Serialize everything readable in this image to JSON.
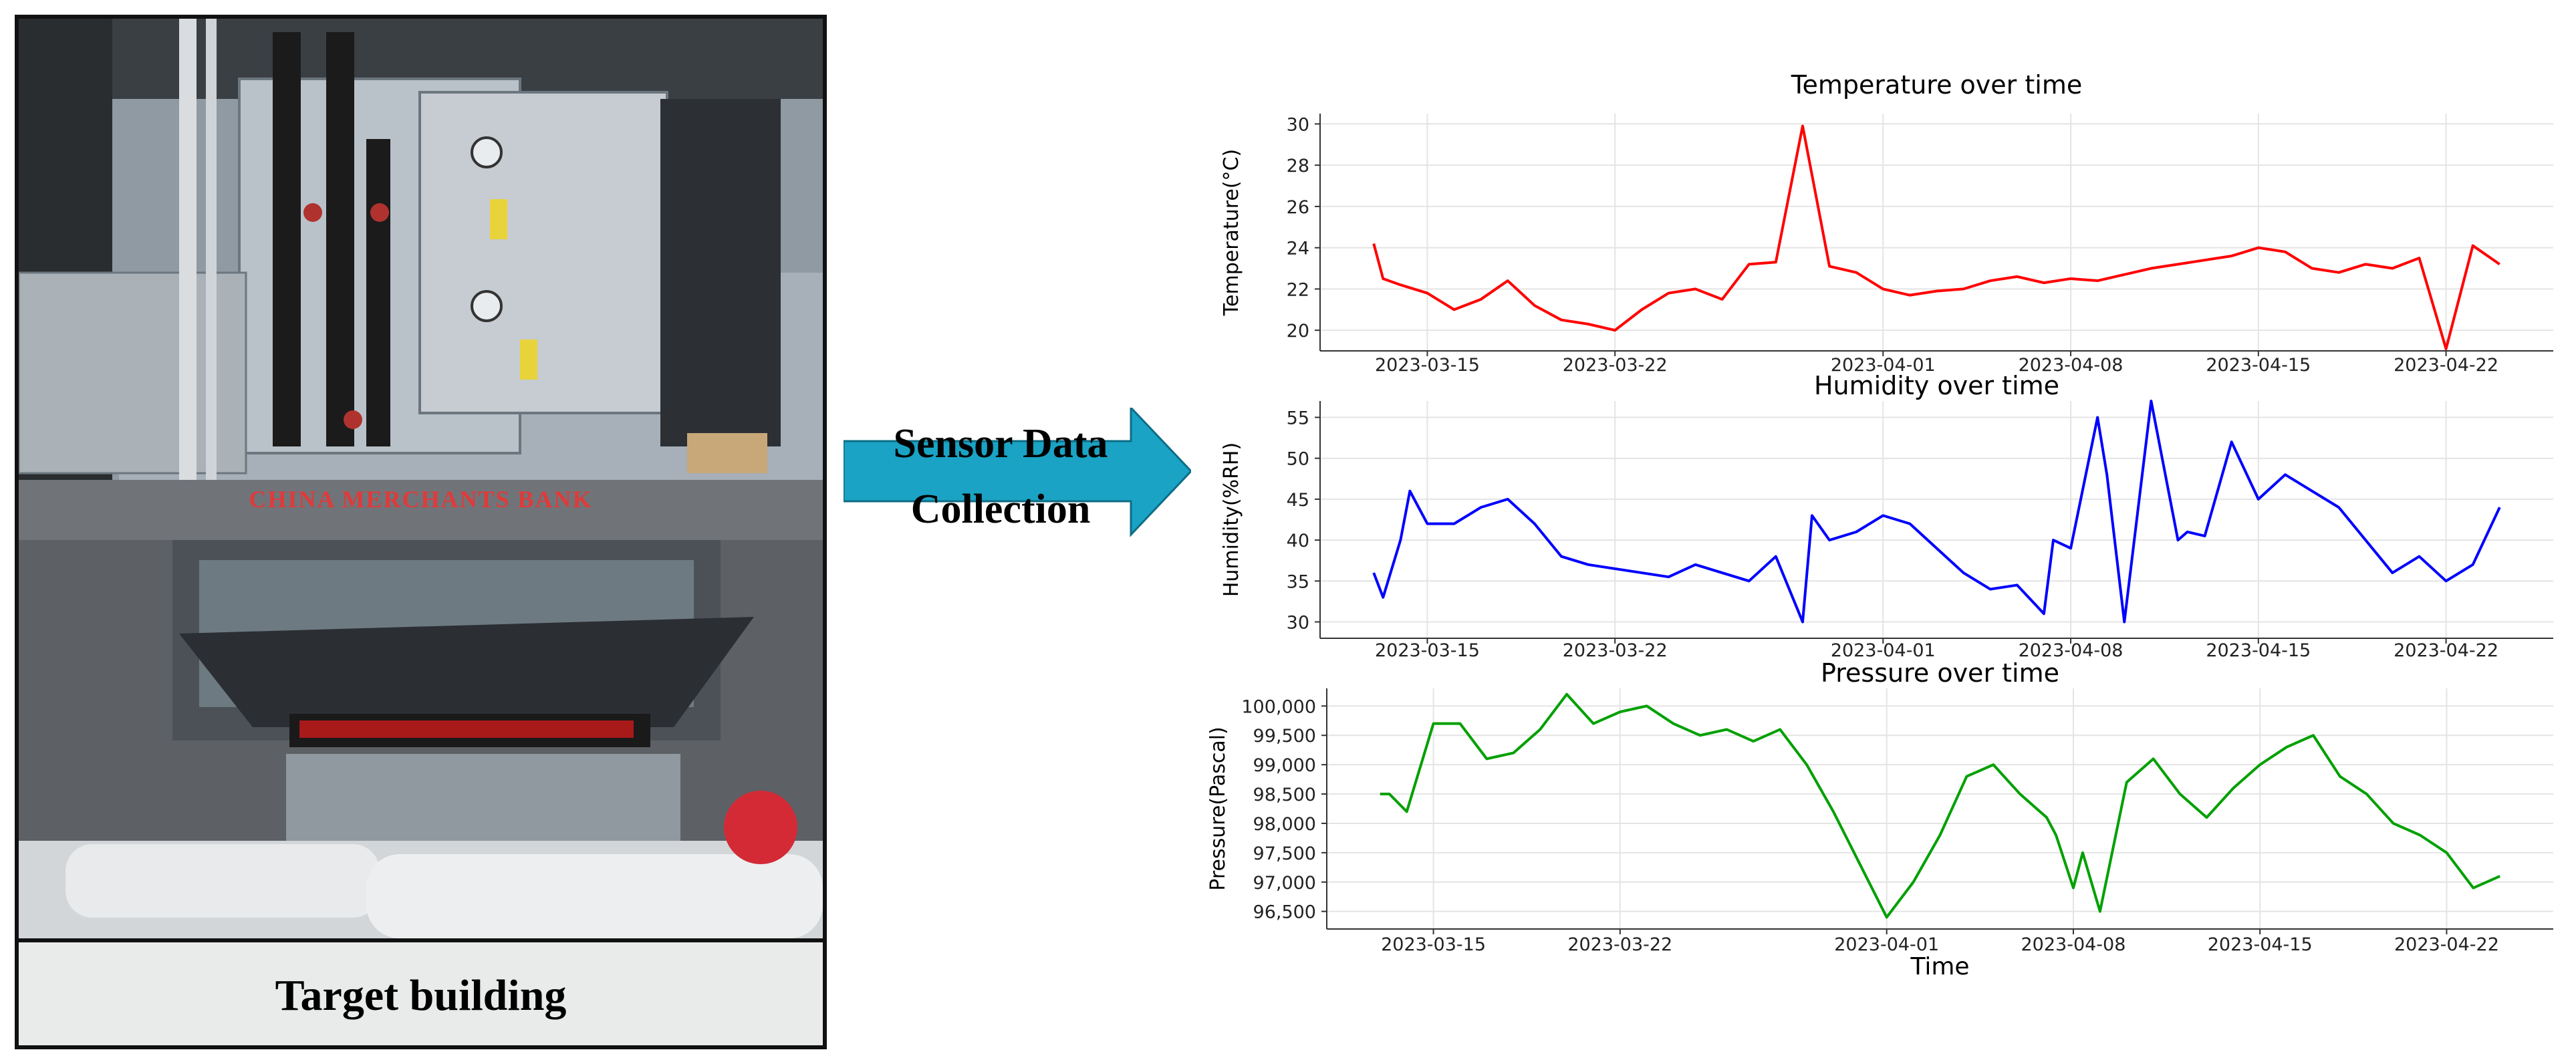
{
  "photo_caption": "Target building",
  "arrow_label": [
    "Sensor Data",
    "Collection"
  ],
  "bank_sign": "CHINA MERCHANTS BANK",
  "colors": {
    "temperature": "#ff0000",
    "humidity": "#0000ff",
    "pressure": "#00a000",
    "arrow": "#1aa3c4"
  },
  "chart_data": [
    {
      "type": "line",
      "title": "Temperature over time",
      "ylabel": "Temperature(°C)",
      "xlabel": "",
      "xlim": [
        "2023-03-11",
        "2023-04-26"
      ],
      "ylim": [
        19,
        30.5
      ],
      "yticks": [
        "20",
        "22",
        "24",
        "26",
        "28",
        "30"
      ],
      "xticks": [
        "2023-03-15",
        "2023-03-22",
        "2023-04-01",
        "2023-04-08",
        "2023-04-15",
        "2023-04-22"
      ],
      "grid": true,
      "series": [
        {
          "x": [
            "2023-03-13",
            "2023-03-13",
            "2023-03-14",
            "2023-03-15",
            "2023-03-16",
            "2023-03-17",
            "2023-03-18",
            "2023-03-19",
            "2023-03-20",
            "2023-03-21",
            "2023-03-22",
            "2023-03-23",
            "2023-03-24",
            "2023-03-25",
            "2023-03-26",
            "2023-03-27",
            "2023-03-28",
            "2023-03-29",
            "2023-03-30",
            "2023-03-31",
            "2023-04-01",
            "2023-04-02",
            "2023-04-03",
            "2023-04-04",
            "2023-04-05",
            "2023-04-06",
            "2023-04-07",
            "2023-04-08",
            "2023-04-09",
            "2023-04-10",
            "2023-04-11",
            "2023-04-12",
            "2023-04-13",
            "2023-04-14",
            "2023-04-15",
            "2023-04-16",
            "2023-04-17",
            "2023-04-18",
            "2023-04-19",
            "2023-04-20",
            "2023-04-21",
            "2023-04-22",
            "2023-04-23",
            "2023-04-24"
          ],
          "y": [
            24.2,
            22.5,
            22.2,
            21.8,
            21.0,
            21.5,
            22.4,
            21.2,
            20.5,
            20.3,
            20.0,
            21.0,
            21.8,
            22.0,
            21.5,
            23.2,
            23.3,
            29.9,
            23.1,
            22.8,
            22.0,
            21.7,
            21.9,
            22.0,
            22.4,
            22.6,
            22.3,
            22.5,
            22.4,
            22.7,
            23.0,
            23.2,
            23.4,
            23.6,
            24.0,
            23.8,
            23.0,
            22.8,
            23.2,
            23.0,
            23.5,
            19.1,
            24.1,
            23.2
          ]
        }
      ]
    },
    {
      "type": "line",
      "title": "Humidity over time",
      "ylabel": "Humidity(%RH)",
      "xlabel": "",
      "xlim": [
        "2023-03-11",
        "2023-04-26"
      ],
      "ylim": [
        28,
        57
      ],
      "yticks": [
        "30",
        "35",
        "40",
        "45",
        "50",
        "55"
      ],
      "xticks": [
        "2023-03-15",
        "2023-03-22",
        "2023-04-01",
        "2023-04-08",
        "2023-04-15",
        "2023-04-22"
      ],
      "grid": true,
      "series": [
        {
          "x": [
            "2023-03-13",
            "2023-03-13",
            "2023-03-14",
            "2023-03-14",
            "2023-03-15",
            "2023-03-16",
            "2023-03-17",
            "2023-03-18",
            "2023-03-19",
            "2023-03-20",
            "2023-03-21",
            "2023-03-22",
            "2023-03-23",
            "2023-03-24",
            "2023-03-25",
            "2023-03-26",
            "2023-03-27",
            "2023-03-28",
            "2023-03-29",
            "2023-03-29",
            "2023-03-30",
            "2023-03-31",
            "2023-04-01",
            "2023-04-02",
            "2023-04-03",
            "2023-04-04",
            "2023-04-05",
            "2023-04-06",
            "2023-04-07",
            "2023-04-07",
            "2023-04-08",
            "2023-04-09",
            "2023-04-09",
            "2023-04-10",
            "2023-04-11",
            "2023-04-12",
            "2023-04-12",
            "2023-04-13",
            "2023-04-14",
            "2023-04-15",
            "2023-04-16",
            "2023-04-17",
            "2023-04-18",
            "2023-04-19",
            "2023-04-20",
            "2023-04-21",
            "2023-04-22",
            "2023-04-23",
            "2023-04-24"
          ],
          "y": [
            36,
            33,
            40,
            46,
            42,
            42,
            44,
            45,
            42,
            38,
            37,
            36.5,
            36,
            35.5,
            37,
            36,
            35,
            38,
            30,
            43,
            40,
            41,
            43,
            42,
            39,
            36,
            34,
            34.5,
            31,
            40,
            39,
            55,
            48,
            30,
            57,
            40,
            41,
            40.5,
            52,
            45,
            48,
            46,
            44,
            40,
            36,
            38,
            35,
            37,
            44
          ]
        }
      ]
    },
    {
      "type": "line",
      "title": "Pressure over time",
      "ylabel": "Pressure(Pascal)",
      "xlabel": "Time",
      "xlim": [
        "2023-03-11",
        "2023-04-26"
      ],
      "ylim": [
        96200,
        100300
      ],
      "yticks": [
        "96,500",
        "97,000",
        "97,500",
        "98,000",
        "98,500",
        "99,000",
        "99,500",
        "100,000"
      ],
      "xticks": [
        "2023-03-15",
        "2023-03-22",
        "2023-04-01",
        "2023-04-08",
        "2023-04-15",
        "2023-04-22"
      ],
      "grid": true,
      "series": [
        {
          "x": [
            "2023-03-13",
            "2023-03-13",
            "2023-03-14",
            "2023-03-15",
            "2023-03-16",
            "2023-03-17",
            "2023-03-18",
            "2023-03-19",
            "2023-03-20",
            "2023-03-21",
            "2023-03-22",
            "2023-03-23",
            "2023-03-24",
            "2023-03-25",
            "2023-03-26",
            "2023-03-27",
            "2023-03-28",
            "2023-03-29",
            "2023-03-30",
            "2023-03-31",
            "2023-04-01",
            "2023-04-02",
            "2023-04-03",
            "2023-04-04",
            "2023-04-05",
            "2023-04-06",
            "2023-04-07",
            "2023-04-07",
            "2023-04-08",
            "2023-04-08",
            "2023-04-09",
            "2023-04-10",
            "2023-04-11",
            "2023-04-12",
            "2023-04-13",
            "2023-04-14",
            "2023-04-15",
            "2023-04-16",
            "2023-04-17",
            "2023-04-18",
            "2023-04-19",
            "2023-04-20",
            "2023-04-21",
            "2023-04-22",
            "2023-04-23",
            "2023-04-24"
          ],
          "y": [
            98500,
            98500,
            98200,
            99700,
            99700,
            99100,
            99200,
            99600,
            100200,
            99700,
            99900,
            100000,
            99700,
            99500,
            99600,
            99400,
            99600,
            99000,
            98200,
            97300,
            96400,
            97000,
            97800,
            98800,
            99000,
            98500,
            98100,
            97800,
            96900,
            97500,
            96500,
            98700,
            99100,
            98500,
            98100,
            98600,
            99000,
            99300,
            99500,
            98800,
            98500,
            98000,
            97800,
            97500,
            96900,
            97100
          ]
        }
      ]
    }
  ]
}
